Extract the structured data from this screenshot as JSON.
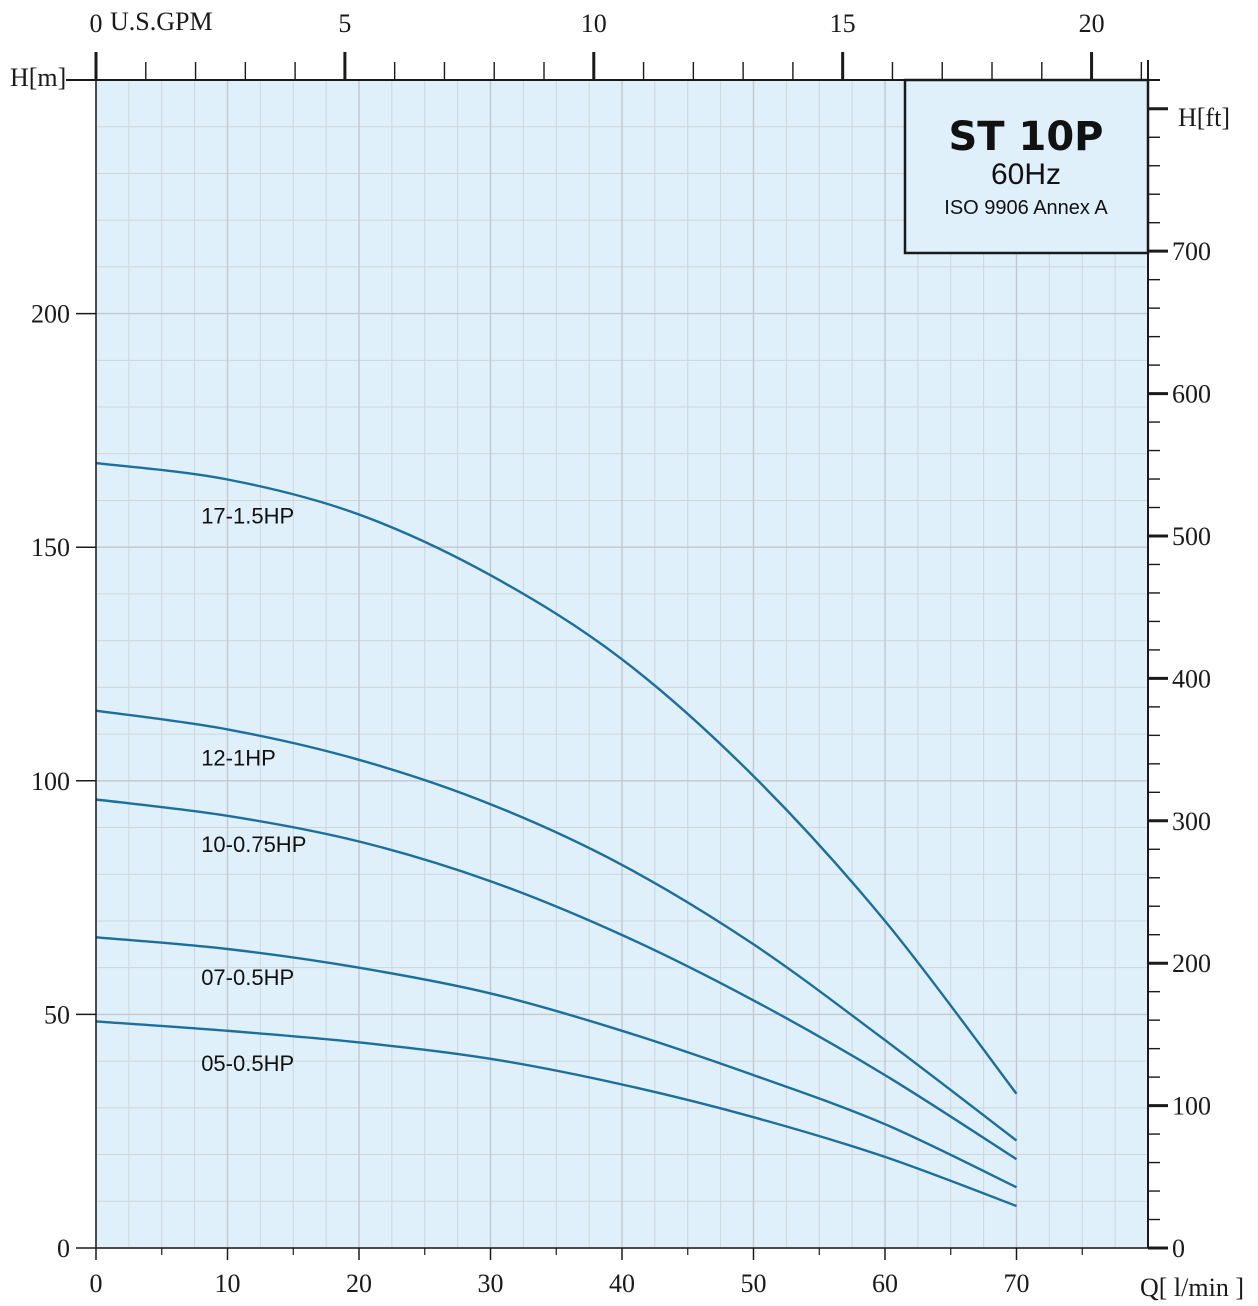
{
  "chart_data": {
    "type": "line",
    "title": "ST 10P",
    "subtitle": "60Hz",
    "standard": "ISO 9906 Annex A",
    "x_axis": {
      "label": "Q[ l/min ]",
      "range": [
        0,
        80
      ],
      "tick_values": [
        0,
        10,
        20,
        30,
        40,
        50,
        60,
        70
      ],
      "tick_labels": [
        "0",
        "10",
        "20",
        "30",
        "40",
        "50",
        "60",
        "70"
      ]
    },
    "x2_axis": {
      "label": "U.S.GPM",
      "tick_values": [
        0,
        5,
        10,
        15,
        20
      ],
      "tick_labels": [
        "0",
        "5",
        "10",
        "15",
        "20"
      ]
    },
    "y_axis": {
      "label": "H[m]",
      "range": [
        0,
        250
      ],
      "tick_values": [
        0,
        50,
        100,
        150,
        200
      ],
      "tick_labels": [
        "0",
        "50",
        "100",
        "150",
        "200"
      ]
    },
    "y2_axis": {
      "label": "H[ft]",
      "tick_values": [
        0,
        100,
        200,
        300,
        400,
        500,
        600,
        700
      ],
      "tick_labels": [
        "0",
        "100",
        "200",
        "300",
        "400",
        "500",
        "600",
        "700"
      ]
    },
    "grid": true,
    "line_color": "#1a6f9e",
    "background_color": "#dff0fa",
    "series": [
      {
        "name": "17-1.5HP",
        "x": [
          0,
          10,
          20,
          30,
          40,
          50,
          60,
          70
        ],
        "y": [
          168,
          164.5,
          157,
          144,
          126,
          101,
          70,
          33
        ]
      },
      {
        "name": "12-1HP",
        "x": [
          0,
          10,
          20,
          30,
          40,
          50,
          60,
          70
        ],
        "y": [
          115,
          111,
          104.5,
          95,
          82,
          65,
          44.5,
          23
        ]
      },
      {
        "name": "10-0.75HP",
        "x": [
          0,
          10,
          20,
          30,
          40,
          50,
          60,
          70
        ],
        "y": [
          96,
          92.5,
          87,
          78.5,
          67,
          53,
          37,
          19
        ]
      },
      {
        "name": "07-0.5HP",
        "x": [
          0,
          10,
          20,
          30,
          40,
          50,
          60,
          70
        ],
        "y": [
          66.5,
          64,
          60,
          54.5,
          46.5,
          37,
          26.5,
          13
        ]
      },
      {
        "name": "05-0.5HP",
        "x": [
          0,
          10,
          20,
          30,
          40,
          50,
          60,
          70
        ],
        "y": [
          48.5,
          46.5,
          44,
          40.5,
          35,
          28,
          19.5,
          9
        ]
      }
    ]
  }
}
